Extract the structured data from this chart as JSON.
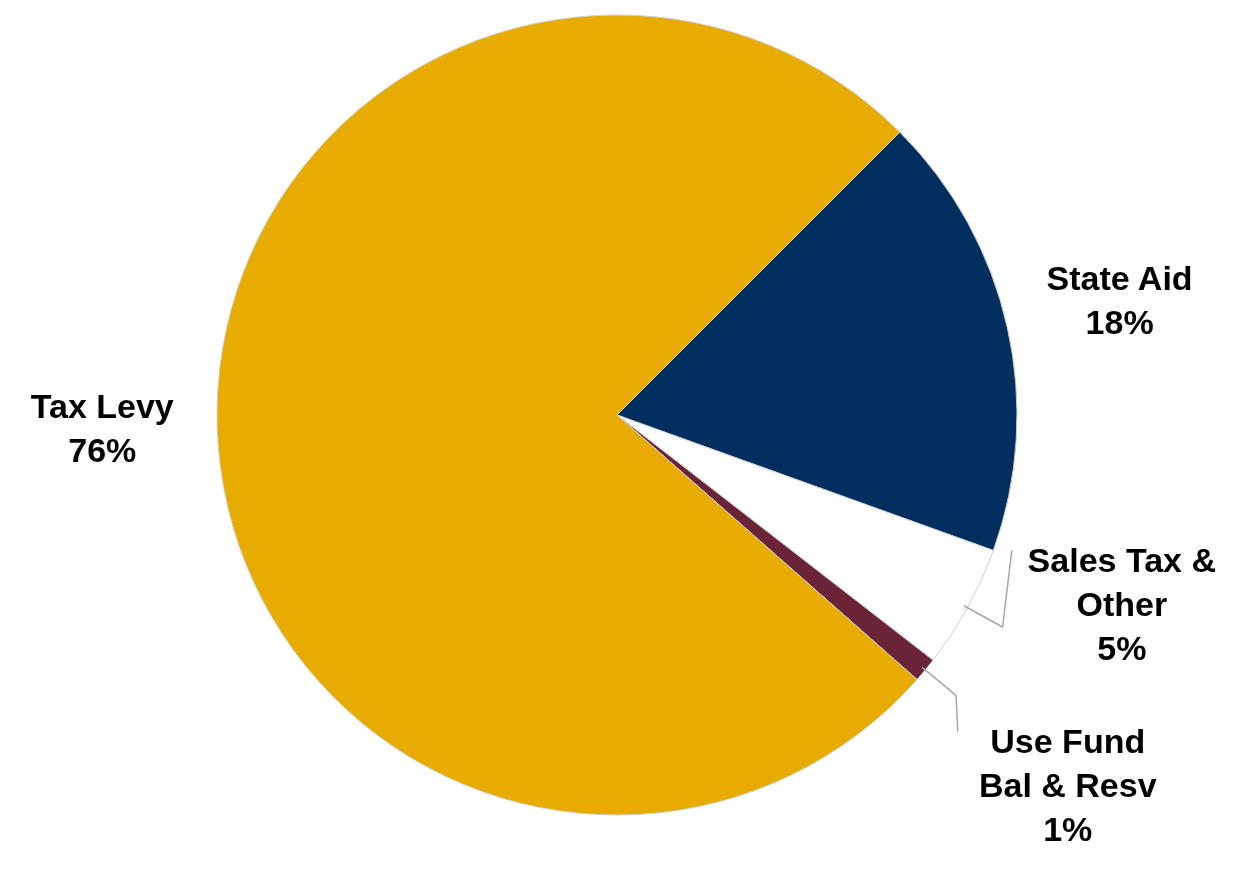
{
  "chart_data": {
    "type": "pie",
    "categories": [
      "State Aid",
      "Sales Tax & Other",
      "Use Fund Bal & Resv",
      "Tax Levy"
    ],
    "values": [
      18,
      5,
      1,
      76
    ],
    "colors": [
      "#002f5f",
      "#ffffff",
      "#6b2338",
      "#e8ac00"
    ],
    "value_labels": [
      "18%",
      "5%",
      "1%",
      "76%"
    ]
  }
}
